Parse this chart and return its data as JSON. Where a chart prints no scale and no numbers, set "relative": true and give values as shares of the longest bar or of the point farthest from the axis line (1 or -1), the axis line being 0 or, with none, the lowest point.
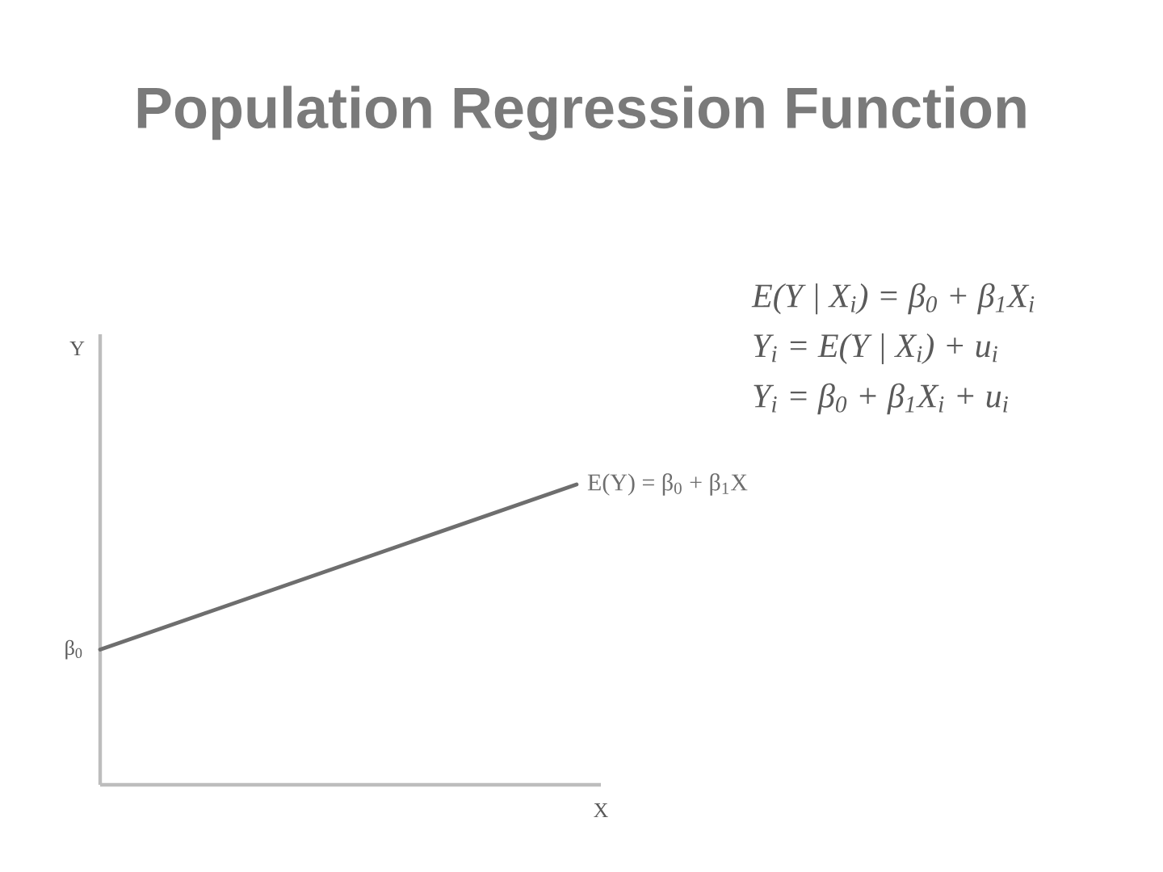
{
  "chart_data": {
    "type": "line",
    "title": "Population Regression Function",
    "xlabel": "X",
    "categories": [
      null,
      null
    ],
    "relative": true,
    "series": [
      {
        "name": "E(Y) = β$_{0}$ + β$_{1}$X",
        "color": "#6e6e6e",
        "values": [
          0.45,
          1
        ]
      }
    ],
    "annotations": [
      "Y",
      "β$_{0}$",
      "E(Y | X$_{i}$) = β$_{0}$ + β$_{1}$X$_{i}$",
      "Y$_{i}$ = E(Y | X$_{i}$) + u$_{i}$",
      "Y$_{i}$ = β$_{0}$ + β$_{1}$X$_{i}$ + u$_{i}$"
    ]
  }
}
